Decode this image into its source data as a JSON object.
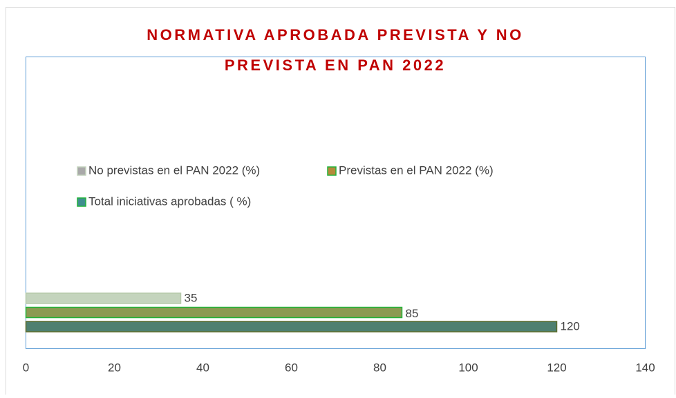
{
  "chart_data": {
    "type": "bar",
    "orientation": "horizontal",
    "title": "NORMATIVA APROBADA PREVISTA Y NO PREVISTA EN PAN 2022",
    "categories": [
      null
    ],
    "series": [
      {
        "name": "No previstas en el PAN 2022 (%)",
        "color": "#c4d4bd",
        "values": [
          35
        ]
      },
      {
        "name": "Previstas en el PAN 2022 (%)",
        "color": "#8c9a52",
        "values": [
          85
        ]
      },
      {
        "name": "Total iniciativas aprobadas ( %)",
        "color": "#4e8070",
        "values": [
          120
        ]
      }
    ],
    "xlim": [
      0,
      140
    ],
    "xticks": [
      0,
      20,
      40,
      60,
      80,
      100,
      120,
      140
    ],
    "grid": false
  }
}
